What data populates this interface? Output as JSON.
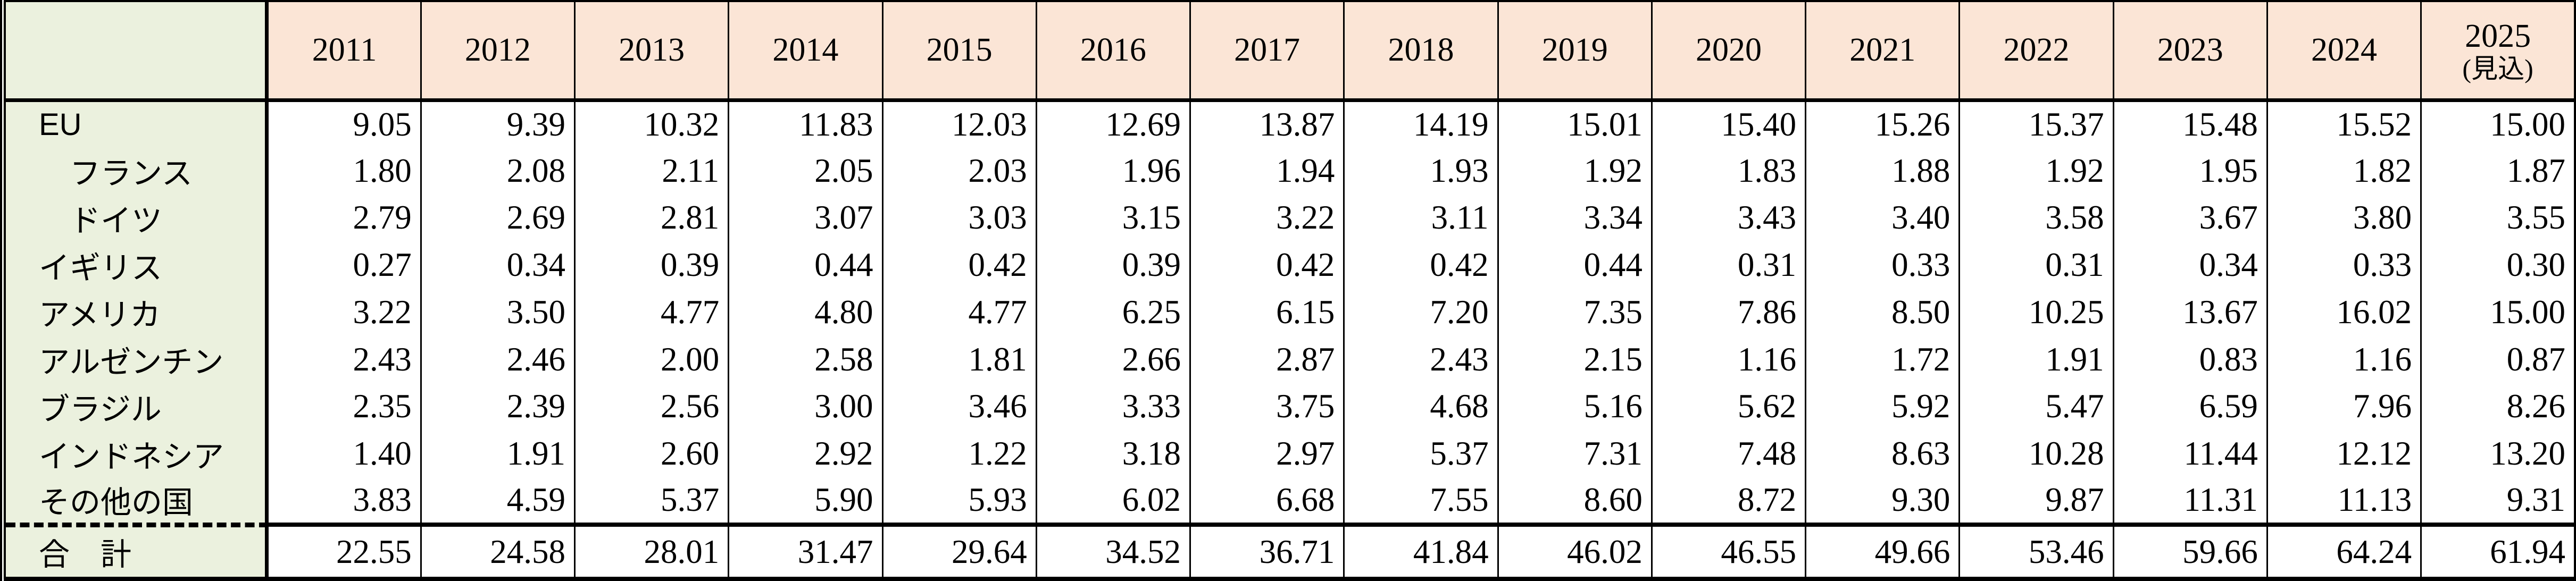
{
  "table": {
    "corner_label": "",
    "year_headers": [
      "2011",
      "2012",
      "2013",
      "2014",
      "2015",
      "2016",
      "2017",
      "2018",
      "2019",
      "2020",
      "2021",
      "2022",
      "2023",
      "2024"
    ],
    "forecast_header": {
      "line1": "2025",
      "line2": "(見込)"
    },
    "rows": [
      {
        "label": "EU",
        "values": [
          "9.05",
          "9.39",
          "10.32",
          "11.83",
          "12.03",
          "12.69",
          "13.87",
          "14.19",
          "15.01",
          "15.40",
          "15.26",
          "15.37",
          "15.48",
          "15.52",
          "15.00"
        ]
      },
      {
        "label": "　フランス",
        "values": [
          "1.80",
          "2.08",
          "2.11",
          "2.05",
          "2.03",
          "1.96",
          "1.94",
          "1.93",
          "1.92",
          "1.83",
          "1.88",
          "1.92",
          "1.95",
          "1.82",
          "1.87"
        ]
      },
      {
        "label": "　ドイツ",
        "values": [
          "2.79",
          "2.69",
          "2.81",
          "3.07",
          "3.03",
          "3.15",
          "3.22",
          "3.11",
          "3.34",
          "3.43",
          "3.40",
          "3.58",
          "3.67",
          "3.80",
          "3.55"
        ]
      },
      {
        "label": "イギリス",
        "values": [
          "0.27",
          "0.34",
          "0.39",
          "0.44",
          "0.42",
          "0.39",
          "0.42",
          "0.42",
          "0.44",
          "0.31",
          "0.33",
          "0.31",
          "0.34",
          "0.33",
          "0.30"
        ]
      },
      {
        "label": "アメリカ",
        "values": [
          "3.22",
          "3.50",
          "4.77",
          "4.80",
          "4.77",
          "6.25",
          "6.15",
          "7.20",
          "7.35",
          "7.86",
          "8.50",
          "10.25",
          "13.67",
          "16.02",
          "15.00"
        ]
      },
      {
        "label": "アルゼンチン",
        "values": [
          "2.43",
          "2.46",
          "2.00",
          "2.58",
          "1.81",
          "2.66",
          "2.87",
          "2.43",
          "2.15",
          "1.16",
          "1.72",
          "1.91",
          "0.83",
          "1.16",
          "0.87"
        ]
      },
      {
        "label": "ブラジル",
        "values": [
          "2.35",
          "2.39",
          "2.56",
          "3.00",
          "3.46",
          "3.33",
          "3.75",
          "4.68",
          "5.16",
          "5.62",
          "5.92",
          "5.47",
          "6.59",
          "7.96",
          "8.26"
        ]
      },
      {
        "label": "インドネシア",
        "values": [
          "1.40",
          "1.91",
          "2.60",
          "2.92",
          "1.22",
          "3.18",
          "2.97",
          "5.37",
          "7.31",
          "7.48",
          "8.63",
          "10.28",
          "11.44",
          "12.12",
          "13.20"
        ]
      },
      {
        "label": "その他の国",
        "values": [
          "3.83",
          "4.59",
          "5.37",
          "5.90",
          "5.93",
          "6.02",
          "6.68",
          "7.55",
          "8.60",
          "8.72",
          "9.30",
          "9.87",
          "11.31",
          "11.13",
          "9.31"
        ]
      }
    ],
    "total_row": {
      "label": "合　計",
      "values": [
        "22.55",
        "24.58",
        "28.01",
        "31.47",
        "29.64",
        "34.52",
        "36.71",
        "41.84",
        "46.02",
        "46.55",
        "49.66",
        "53.46",
        "59.66",
        "64.24",
        "61.94"
      ]
    }
  },
  "colors": {
    "header_bg": "#fbe5d6",
    "label_bg": "#ebf1de",
    "cell_bg": "#ffffff",
    "border": "#000000",
    "text": "#000000"
  },
  "chart_data": {
    "type": "table",
    "categories": [
      "2011",
      "2012",
      "2013",
      "2014",
      "2015",
      "2016",
      "2017",
      "2018",
      "2019",
      "2020",
      "2021",
      "2022",
      "2023",
      "2024",
      "2025(見込)"
    ],
    "series": [
      {
        "name": "EU",
        "values": [
          9.05,
          9.39,
          10.32,
          11.83,
          12.03,
          12.69,
          13.87,
          14.19,
          15.01,
          15.4,
          15.26,
          15.37,
          15.48,
          15.52,
          15.0
        ]
      },
      {
        "name": "フランス",
        "values": [
          1.8,
          2.08,
          2.11,
          2.05,
          2.03,
          1.96,
          1.94,
          1.93,
          1.92,
          1.83,
          1.88,
          1.92,
          1.95,
          1.82,
          1.87
        ]
      },
      {
        "name": "ドイツ",
        "values": [
          2.79,
          2.69,
          2.81,
          3.07,
          3.03,
          3.15,
          3.22,
          3.11,
          3.34,
          3.43,
          3.4,
          3.58,
          3.67,
          3.8,
          3.55
        ]
      },
      {
        "name": "イギリス",
        "values": [
          0.27,
          0.34,
          0.39,
          0.44,
          0.42,
          0.39,
          0.42,
          0.42,
          0.44,
          0.31,
          0.33,
          0.31,
          0.34,
          0.33,
          0.3
        ]
      },
      {
        "name": "アメリカ",
        "values": [
          3.22,
          3.5,
          4.77,
          4.8,
          4.77,
          6.25,
          6.15,
          7.2,
          7.35,
          7.86,
          8.5,
          10.25,
          13.67,
          16.02,
          15.0
        ]
      },
      {
        "name": "アルゼンチン",
        "values": [
          2.43,
          2.46,
          2.0,
          2.58,
          1.81,
          2.66,
          2.87,
          2.43,
          2.15,
          1.16,
          1.72,
          1.91,
          0.83,
          1.16,
          0.87
        ]
      },
      {
        "name": "ブラジル",
        "values": [
          2.35,
          2.39,
          2.56,
          3.0,
          3.46,
          3.33,
          3.75,
          4.68,
          5.16,
          5.62,
          5.92,
          5.47,
          6.59,
          7.96,
          8.26
        ]
      },
      {
        "name": "インドネシア",
        "values": [
          1.4,
          1.91,
          2.6,
          2.92,
          1.22,
          3.18,
          2.97,
          5.37,
          7.31,
          7.48,
          8.63,
          10.28,
          11.44,
          12.12,
          13.2
        ]
      },
      {
        "name": "その他の国",
        "values": [
          3.83,
          4.59,
          5.37,
          5.9,
          5.93,
          6.02,
          6.68,
          7.55,
          8.6,
          8.72,
          9.3,
          9.87,
          11.31,
          11.13,
          9.31
        ]
      },
      {
        "name": "合計",
        "values": [
          22.55,
          24.58,
          28.01,
          31.47,
          29.64,
          34.52,
          36.71,
          41.84,
          46.02,
          46.55,
          49.66,
          53.46,
          59.66,
          64.24,
          61.94
        ]
      }
    ]
  }
}
